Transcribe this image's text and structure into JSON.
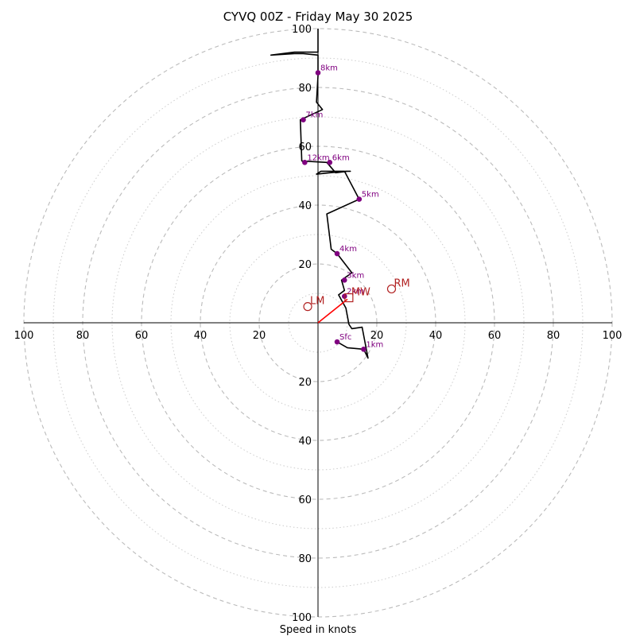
{
  "chart_data": {
    "type": "line",
    "title": "CYVQ 00Z - Friday May 30 2025",
    "xlabel": "Speed in knots",
    "rmax": 100,
    "ring_step": 10,
    "tick_labels": [
      "20",
      "40",
      "60",
      "80",
      "100"
    ],
    "tick_values": [
      20,
      40,
      60,
      80,
      100
    ],
    "colors": {
      "hodograph": "#000000",
      "height_marker": "#800080",
      "motion": "#b22222",
      "mean_wind_vector": "#ff0000",
      "grid_major": "#bbbbbb",
      "grid_minor": "#cccccc"
    },
    "hodograph": {
      "u": [
        6.5,
        10.0,
        15.5,
        17.0,
        15.0,
        11.5,
        10.5,
        9.5,
        7.0,
        9.0,
        8.0,
        11.5,
        6.5,
        4.5,
        3.0,
        14.0,
        9.0,
        1.0,
        -0.5,
        4.0,
        9.5,
        11.0,
        10.0,
        6.0,
        3.0,
        -5.5,
        -6.0,
        1.5,
        -0.5,
        0.0,
        0.0,
        -5.0,
        -8.0,
        -16.0,
        -8.0,
        -7.5,
        0.0,
        0.0
      ],
      "v": [
        -6.5,
        -8.5,
        -9.0,
        -12.0,
        -1.5,
        -2.0,
        -0.5,
        5.0,
        9.5,
        11.0,
        14.5,
        17.0,
        23.5,
        25.0,
        37.0,
        42.0,
        51.5,
        51.5,
        50.5,
        51.0,
        51.5,
        51.5,
        51.5,
        51.0,
        54.5,
        55.0,
        69.0,
        72.5,
        75.0,
        84.0,
        91.0,
        91.5,
        91.5,
        91.0,
        92.0,
        92.0,
        92.0,
        100.0
      ]
    },
    "height_markers": [
      {
        "label": "Sfc",
        "u": 6.5,
        "v": -6.5
      },
      {
        "label": "1km",
        "u": 15.5,
        "v": -9.0
      },
      {
        "label": "2km",
        "u": 9.0,
        "v": 9.0
      },
      {
        "label": "3km",
        "u": 9.0,
        "v": 14.5
      },
      {
        "label": "4km",
        "u": 6.5,
        "v": 23.5
      },
      {
        "label": "5km",
        "u": 14.0,
        "v": 42.0
      },
      {
        "label": "6km",
        "u": 4.0,
        "v": 54.5
      },
      {
        "label": "12km",
        "u": -4.5,
        "v": 54.5
      },
      {
        "label": "7km",
        "u": -5.0,
        "v": 69.0
      },
      {
        "label": "8km",
        "u": 0.0,
        "v": 85.0
      }
    ],
    "motion_markers": [
      {
        "label": "RM",
        "u": 25.0,
        "v": 11.5,
        "shape": "circle"
      },
      {
        "label": "LM",
        "u": -3.5,
        "v": 5.5,
        "shape": "circle"
      },
      {
        "label": "MW",
        "u": 10.5,
        "v": 8.5,
        "shape": "square"
      }
    ],
    "mean_wind_vector": {
      "u": 10.0,
      "v": 8.0
    }
  }
}
